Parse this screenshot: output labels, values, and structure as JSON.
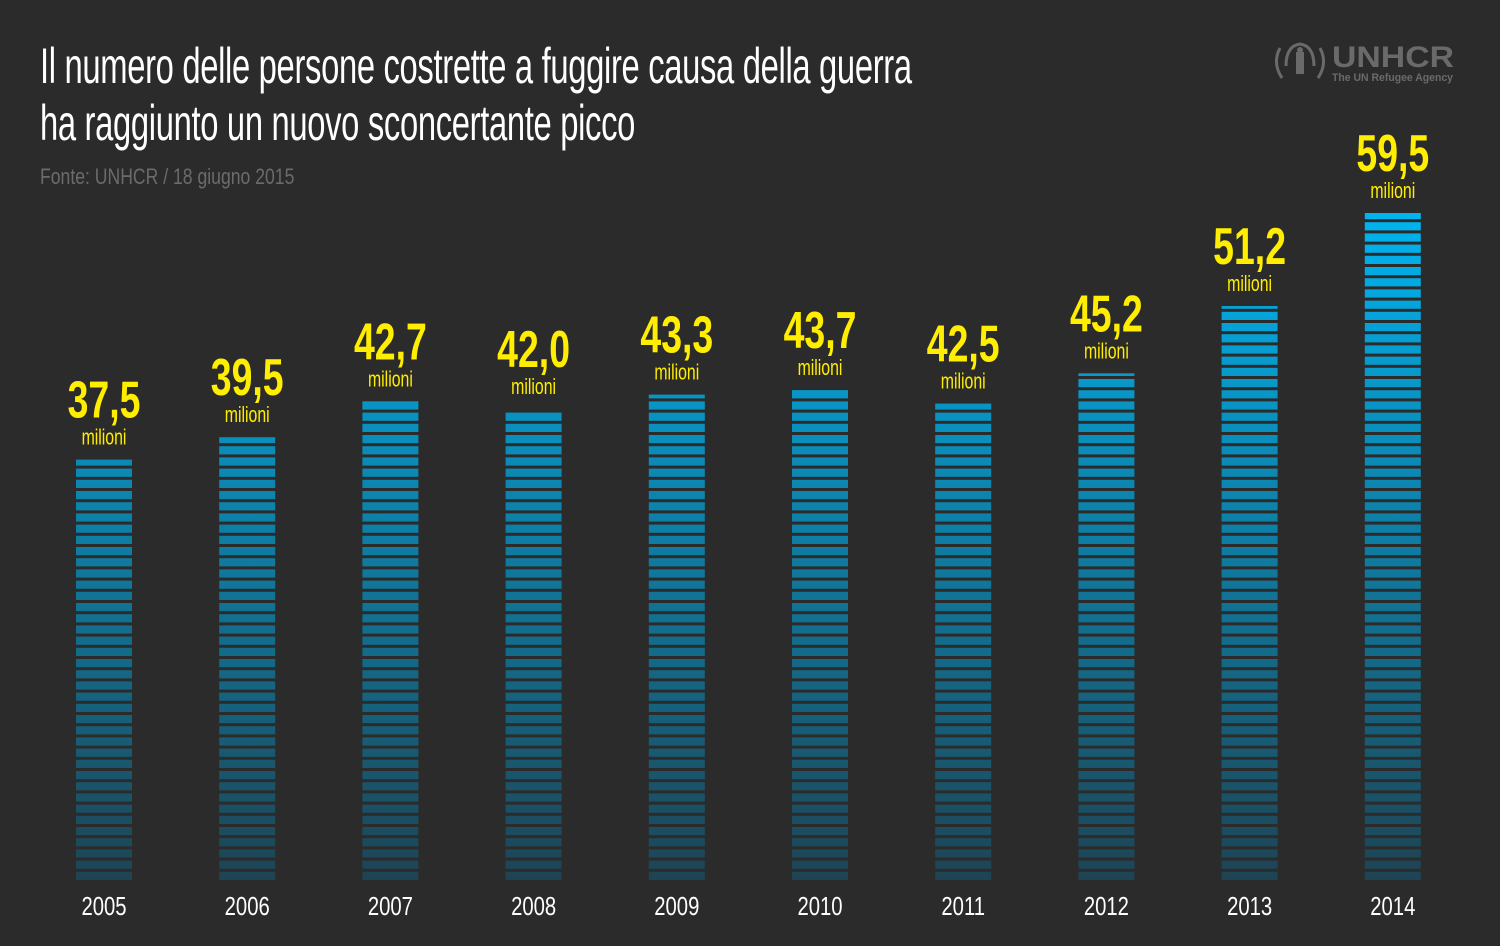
{
  "title_lines": [
    "Il numero delle persone costrette a fuggire causa della guerra",
    "ha raggiunto un nuovo sconcertante picco"
  ],
  "source": "Fonte: UNHCR / 18 giugno 2015",
  "logo": {
    "name": "UNHCR",
    "tagline": "The UN Refugee Agency"
  },
  "colors": {
    "background": "#2b2b2b",
    "bar_top": "#00b4f0",
    "bar_bottom": "#1e4454",
    "value_label": "#ffee00",
    "year_label": "#ffffff"
  },
  "chart_data": {
    "type": "bar",
    "title": "Il numero delle persone costrette a fuggire causa della guerra ha raggiunto un nuovo sconcertante picco",
    "categories": [
      "2005",
      "2006",
      "2007",
      "2008",
      "2009",
      "2010",
      "2011",
      "2012",
      "2013",
      "2014"
    ],
    "values": [
      37.5,
      39.5,
      42.7,
      42.0,
      43.3,
      43.7,
      42.5,
      45.2,
      51.2,
      59.5
    ],
    "value_labels": [
      "37,5",
      "39,5",
      "42,7",
      "42,0",
      "43,3",
      "43,7",
      "42,5",
      "45,2",
      "51,2",
      "59,5"
    ],
    "unit_label": "milioni",
    "xlabel": "",
    "ylabel": "",
    "ylim": [
      0,
      59.5
    ],
    "grid": false
  }
}
